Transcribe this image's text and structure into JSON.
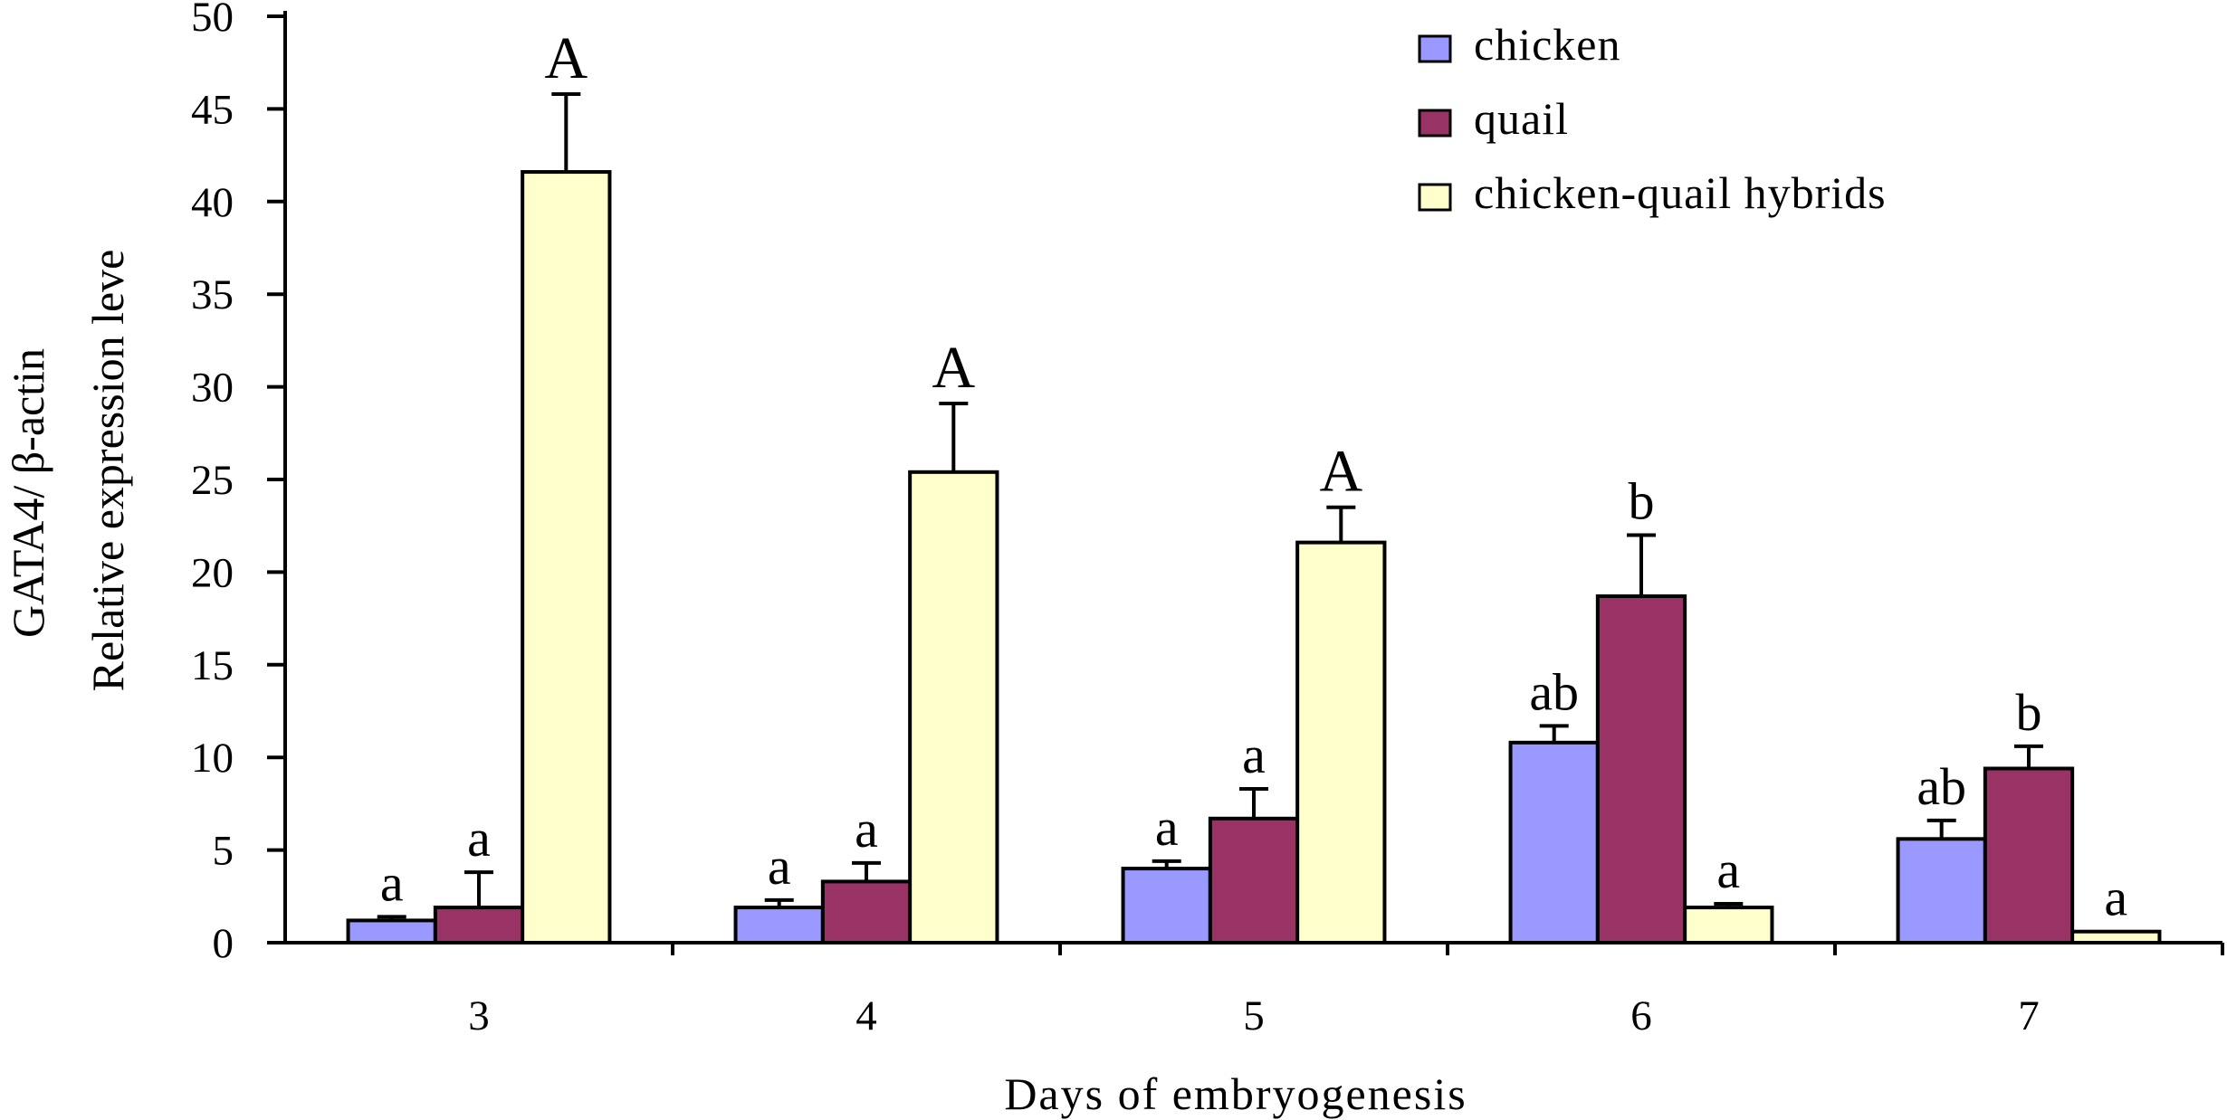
{
  "chart_data": {
    "type": "bar",
    "title": "",
    "xlabel": "Days of embryogenesis",
    "ylabel_line1": "GATA4/ β-actin",
    "ylabel_line2": "Relative expression leve",
    "ylim": [
      0,
      50
    ],
    "y_ticks": [
      0,
      5,
      10,
      15,
      20,
      25,
      30,
      35,
      40,
      45,
      50
    ],
    "categories": [
      "3",
      "4",
      "5",
      "6",
      "7"
    ],
    "grid": false,
    "legend_position": "top-right",
    "series": [
      {
        "name": "chicken",
        "color": "#9999ff",
        "values": [
          1.2,
          1.9,
          4.0,
          10.8,
          5.6
        ],
        "errors": [
          0.2,
          0.4,
          0.4,
          0.9,
          1.0
        ],
        "labels": [
          "a",
          "a",
          "a",
          "ab",
          "ab"
        ]
      },
      {
        "name": "quail",
        "color": "#993366",
        "values": [
          1.9,
          3.3,
          6.7,
          18.7,
          9.4
        ],
        "errors": [
          1.9,
          1.0,
          1.6,
          3.3,
          1.2
        ],
        "labels": [
          "a",
          "a",
          "a",
          "b",
          "b"
        ]
      },
      {
        "name": "chicken-quail hybrids",
        "color": "#ffffcc",
        "values": [
          41.6,
          25.4,
          21.6,
          1.9,
          0.6
        ],
        "errors": [
          4.2,
          3.7,
          1.9,
          0.2,
          0.0
        ],
        "labels": [
          "A",
          "A",
          "A",
          "a",
          "a"
        ]
      }
    ]
  }
}
